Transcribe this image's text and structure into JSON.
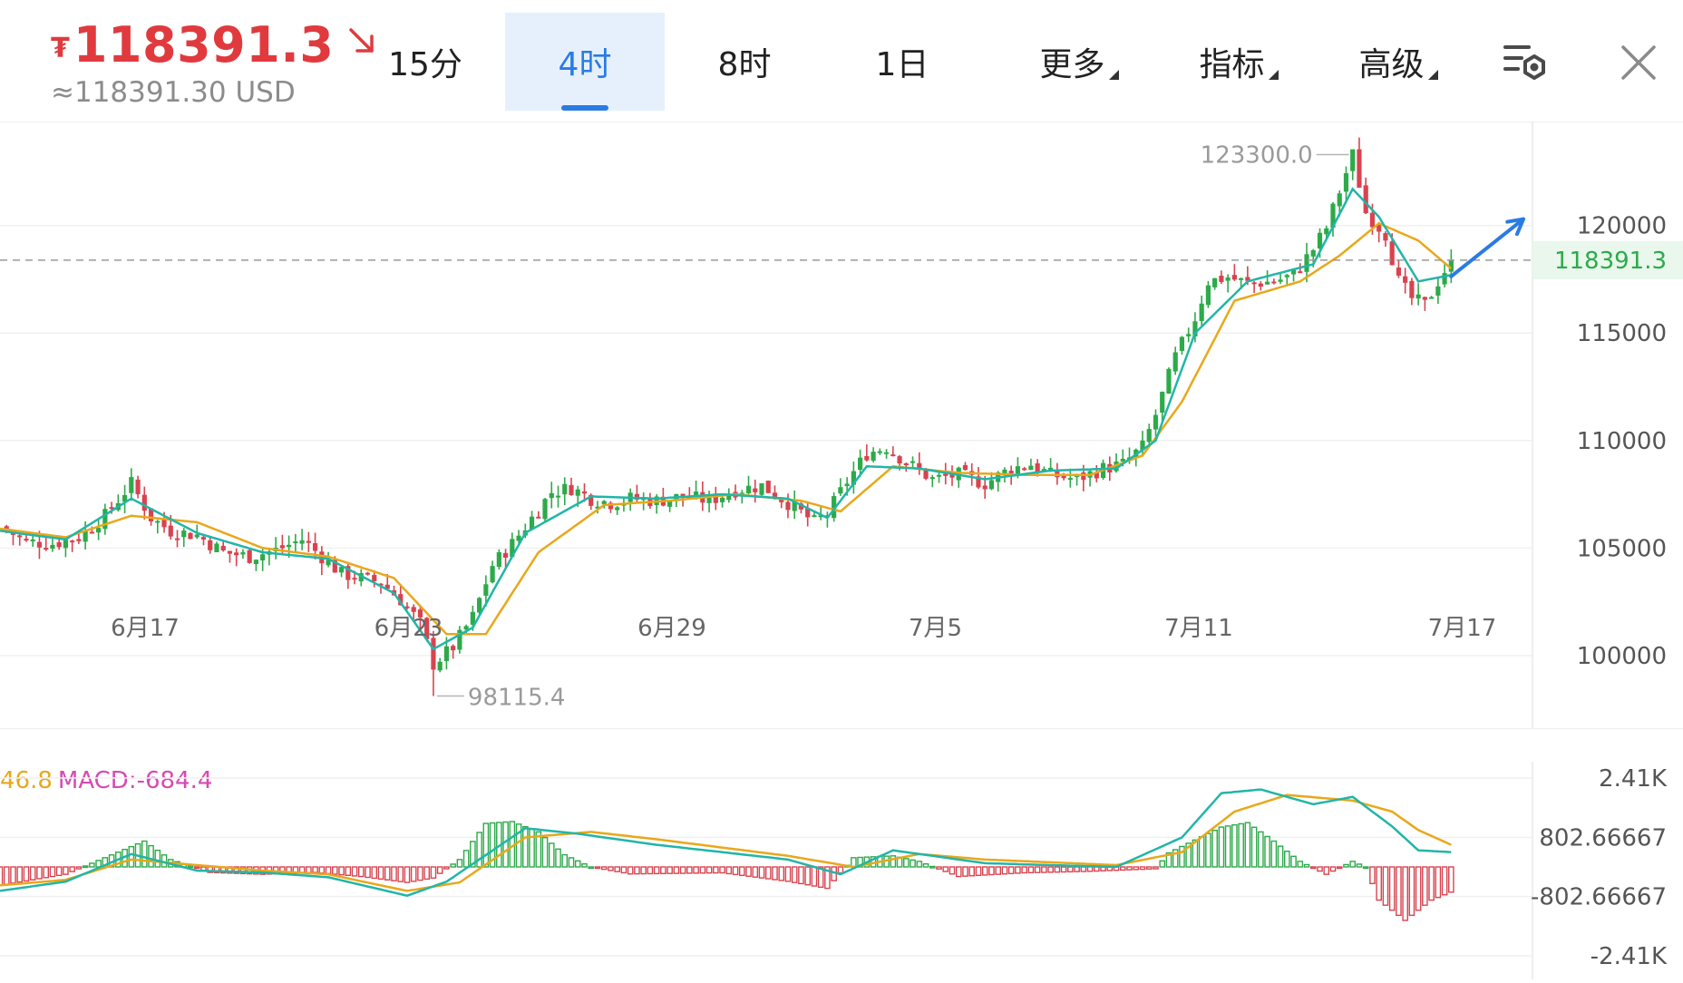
{
  "ticker": {
    "currency_symbol": "₮",
    "price": "118391.3",
    "usd_equiv": "≈118391.30 USD",
    "trend_icon": "arrow-down-right-icon",
    "color": "#e03a3e"
  },
  "tabs": [
    {
      "label": "15分",
      "active": false
    },
    {
      "label": "4时",
      "active": true
    },
    {
      "label": "8时",
      "active": false
    },
    {
      "label": "1日",
      "active": false
    },
    {
      "label": "更多",
      "dropdown": true
    },
    {
      "label": "指标",
      "dropdown": true
    },
    {
      "label": "高级",
      "dropdown": true
    }
  ],
  "toolbar": {
    "settings_icon": "chart-settings-icon",
    "close_icon": "close-icon"
  },
  "colors": {
    "up": "#2daa4a",
    "down": "#d8434f",
    "ma_fast": "#22b5a8",
    "ma_slow": "#e8a81b",
    "accent": "#2a7be4",
    "macd": "#d64ab2",
    "dif": "#e8a81b"
  },
  "chart_data": [
    {
      "type": "candlestick",
      "interval": "4时",
      "y_ticks": [
        "120000",
        "115000",
        "110000",
        "105000",
        "100000"
      ],
      "ylim": [
        97000,
        124500
      ],
      "x_ticks": [
        "6月17",
        "6月23",
        "6月29",
        "7月5",
        "7月11",
        "7月17"
      ],
      "last_price_label": "118391.3",
      "last_price": 118391.3,
      "high_label": "123300.0",
      "high": 123300.0,
      "low_label": "98115.4",
      "low": 98115.4,
      "close_path": [
        [
          0,
          106000
        ],
        [
          4,
          105300
        ],
        [
          8,
          105200
        ],
        [
          12,
          105500
        ],
        [
          16,
          106500
        ],
        [
          20,
          108000
        ],
        [
          23,
          106400
        ],
        [
          26,
          105800
        ],
        [
          30,
          105600
        ],
        [
          34,
          104800
        ],
        [
          38,
          104600
        ],
        [
          42,
          104900
        ],
        [
          46,
          105400
        ],
        [
          49,
          104600
        ],
        [
          52,
          103800
        ],
        [
          55,
          103600
        ],
        [
          58,
          103400
        ],
        [
          61,
          102600
        ],
        [
          64,
          101500
        ],
        [
          66,
          99600
        ],
        [
          69,
          100400
        ],
        [
          72,
          101800
        ],
        [
          75,
          104200
        ],
        [
          78,
          105200
        ],
        [
          81,
          106400
        ],
        [
          84,
          107600
        ],
        [
          87,
          107800
        ],
        [
          90,
          107300
        ],
        [
          93,
          107100
        ],
        [
          96,
          107300
        ],
        [
          100,
          107200
        ],
        [
          104,
          107400
        ],
        [
          108,
          107200
        ],
        [
          112,
          107700
        ],
        [
          116,
          107900
        ],
        [
          120,
          107100
        ],
        [
          124,
          106200
        ],
        [
          126,
          106600
        ],
        [
          129,
          108100
        ],
        [
          132,
          109400
        ],
        [
          135,
          109700
        ],
        [
          138,
          109000
        ],
        [
          142,
          108200
        ],
        [
          146,
          108400
        ],
        [
          150,
          108000
        ],
        [
          154,
          108700
        ],
        [
          157,
          108900
        ],
        [
          160,
          108400
        ],
        [
          164,
          108200
        ],
        [
          168,
          108700
        ],
        [
          171,
          108900
        ],
        [
          174,
          109700
        ],
        [
          176,
          111200
        ],
        [
          179,
          113900
        ],
        [
          182,
          115700
        ],
        [
          184,
          117400
        ],
        [
          187,
          117600
        ],
        [
          190,
          117300
        ],
        [
          194,
          117400
        ],
        [
          197,
          117700
        ],
        [
          200,
          118900
        ],
        [
          202,
          119900
        ],
        [
          204,
          121600
        ],
        [
          206,
          123300
        ],
        [
          208,
          120600
        ],
        [
          211,
          119600
        ],
        [
          213,
          117400
        ],
        [
          215,
          116600
        ],
        [
          217,
          116300
        ],
        [
          219,
          117400
        ],
        [
          221,
          118391.3
        ]
      ],
      "ma_fast_path": [
        [
          0,
          105800
        ],
        [
          10,
          105400
        ],
        [
          20,
          107300
        ],
        [
          30,
          105700
        ],
        [
          40,
          104800
        ],
        [
          50,
          104500
        ],
        [
          60,
          102900
        ],
        [
          66,
          100300
        ],
        [
          72,
          101300
        ],
        [
          80,
          105700
        ],
        [
          90,
          107400
        ],
        [
          100,
          107300
        ],
        [
          110,
          107500
        ],
        [
          120,
          107300
        ],
        [
          126,
          106400
        ],
        [
          132,
          108800
        ],
        [
          140,
          108700
        ],
        [
          150,
          108200
        ],
        [
          160,
          108600
        ],
        [
          170,
          108700
        ],
        [
          176,
          110000
        ],
        [
          182,
          115000
        ],
        [
          190,
          117400
        ],
        [
          200,
          118200
        ],
        [
          206,
          121700
        ],
        [
          210,
          120400
        ],
        [
          216,
          117400
        ],
        [
          221,
          117700
        ]
      ],
      "ma_slow_path": [
        [
          0,
          105900
        ],
        [
          10,
          105500
        ],
        [
          20,
          106500
        ],
        [
          30,
          106200
        ],
        [
          40,
          105000
        ],
        [
          50,
          104600
        ],
        [
          60,
          103600
        ],
        [
          68,
          101000
        ],
        [
          74,
          101000
        ],
        [
          82,
          104800
        ],
        [
          92,
          107000
        ],
        [
          102,
          107200
        ],
        [
          112,
          107500
        ],
        [
          122,
          107200
        ],
        [
          128,
          106700
        ],
        [
          136,
          108800
        ],
        [
          146,
          108500
        ],
        [
          156,
          108400
        ],
        [
          166,
          108400
        ],
        [
          174,
          109300
        ],
        [
          180,
          111800
        ],
        [
          188,
          116500
        ],
        [
          198,
          117400
        ],
        [
          204,
          118600
        ],
        [
          210,
          120100
        ],
        [
          216,
          119300
        ],
        [
          221,
          118000
        ]
      ],
      "forecast_arrow": [
        [
          221,
          118391.3
        ],
        [
          232,
          120300
        ]
      ]
    },
    {
      "type": "bar+line",
      "indicator": "MACD",
      "legend": [
        "46.8",
        "MACD:-684.4"
      ],
      "y_ticks": [
        "2.41K",
        "802.66667",
        "-802.66667",
        "-2.41K"
      ],
      "ylim": [
        -2410,
        2410
      ],
      "histogram": [
        [
          0,
          -500
        ],
        [
          10,
          -200
        ],
        [
          18,
          400
        ],
        [
          22,
          700
        ],
        [
          26,
          200
        ],
        [
          32,
          -150
        ],
        [
          40,
          -200
        ],
        [
          48,
          -150
        ],
        [
          55,
          -260
        ],
        [
          62,
          -420
        ],
        [
          66,
          -300
        ],
        [
          70,
          200
        ],
        [
          74,
          1180
        ],
        [
          78,
          1230
        ],
        [
          82,
          950
        ],
        [
          86,
          330
        ],
        [
          90,
          0
        ],
        [
          96,
          -190
        ],
        [
          110,
          -160
        ],
        [
          120,
          -390
        ],
        [
          126,
          -580
        ],
        [
          130,
          250
        ],
        [
          136,
          300
        ],
        [
          140,
          150
        ],
        [
          146,
          -260
        ],
        [
          156,
          -160
        ],
        [
          166,
          -120
        ],
        [
          176,
          -50
        ],
        [
          178,
          380
        ],
        [
          186,
          1080
        ],
        [
          190,
          1200
        ],
        [
          194,
          700
        ],
        [
          198,
          150
        ],
        [
          202,
          -200
        ],
        [
          206,
          150
        ],
        [
          208,
          0
        ],
        [
          210,
          -900
        ],
        [
          214,
          -1450
        ],
        [
          218,
          -900
        ],
        [
          221,
          -684.4
        ]
      ],
      "dif_path": [
        [
          0,
          -650
        ],
        [
          10,
          -400
        ],
        [
          20,
          350
        ],
        [
          30,
          -100
        ],
        [
          40,
          -150
        ],
        [
          50,
          -280
        ],
        [
          62,
          -780
        ],
        [
          68,
          -400
        ],
        [
          80,
          1050
        ],
        [
          88,
          900
        ],
        [
          100,
          600
        ],
        [
          120,
          200
        ],
        [
          128,
          -200
        ],
        [
          136,
          450
        ],
        [
          150,
          100
        ],
        [
          170,
          0
        ],
        [
          180,
          800
        ],
        [
          186,
          2000
        ],
        [
          192,
          2100
        ],
        [
          200,
          1700
        ],
        [
          206,
          1900
        ],
        [
          212,
          1100
        ],
        [
          216,
          450
        ],
        [
          221,
          400
        ]
      ],
      "dea_path": [
        [
          0,
          -500
        ],
        [
          10,
          -350
        ],
        [
          20,
          200
        ],
        [
          30,
          50
        ],
        [
          40,
          -100
        ],
        [
          50,
          -200
        ],
        [
          62,
          -650
        ],
        [
          70,
          -420
        ],
        [
          80,
          800
        ],
        [
          90,
          950
        ],
        [
          100,
          750
        ],
        [
          120,
          300
        ],
        [
          130,
          0
        ],
        [
          140,
          350
        ],
        [
          150,
          200
        ],
        [
          170,
          50
        ],
        [
          180,
          400
        ],
        [
          188,
          1500
        ],
        [
          196,
          1950
        ],
        [
          206,
          1800
        ],
        [
          212,
          1500
        ],
        [
          216,
          1000
        ],
        [
          221,
          600
        ]
      ]
    }
  ]
}
